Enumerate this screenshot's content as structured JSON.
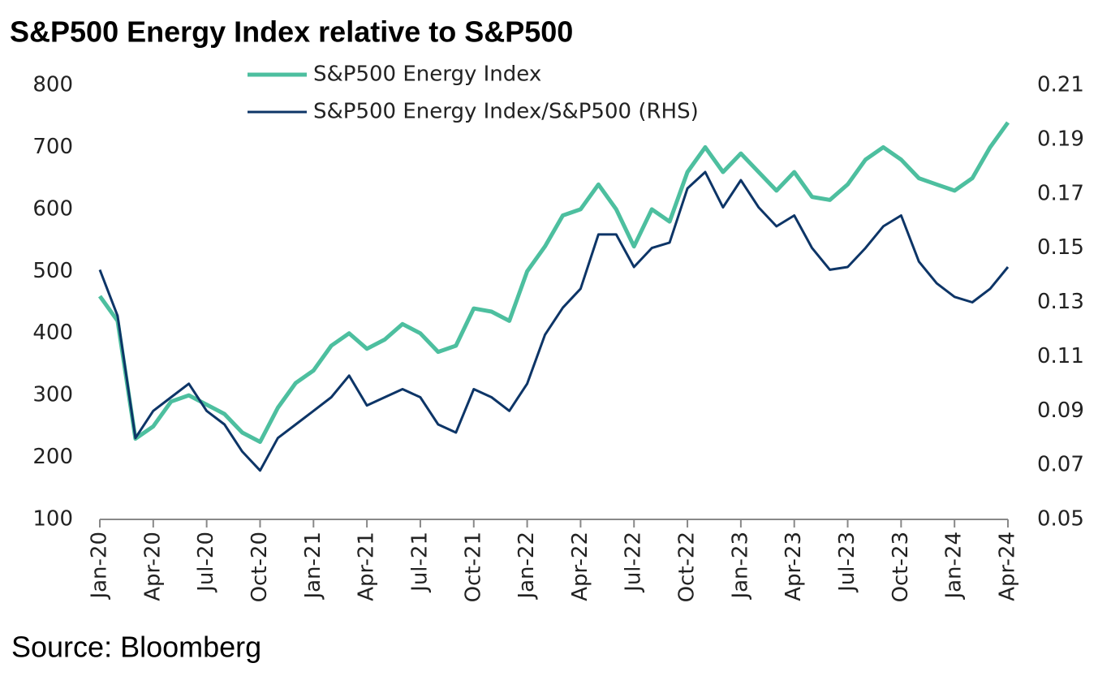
{
  "chart_data": {
    "type": "line",
    "title": "S&P500 Energy Index relative to S&P500",
    "source": "Source: Bloomberg",
    "categories": [
      "Jan-20",
      null,
      null,
      "Apr-20",
      null,
      null,
      "Jul-20",
      null,
      null,
      "Oct-20",
      null,
      null,
      "Jan-21",
      null,
      null,
      "Apr-21",
      null,
      null,
      "Jul-21",
      null,
      null,
      "Oct-21",
      null,
      null,
      "Jan-22",
      null,
      null,
      "Apr-22",
      null,
      null,
      "Jul-22",
      null,
      null,
      "Oct-22",
      null,
      null,
      "Jan-23",
      null,
      null,
      "Apr-23",
      null,
      null,
      "Jul-23",
      null,
      null,
      "Oct-23",
      null,
      null,
      "Jan-24",
      null,
      null,
      "Apr-24"
    ],
    "series": [
      {
        "name": "S&P500 Energy Index",
        "color": "#4dbf9f",
        "axis": "y",
        "values": [
          460,
          420,
          230,
          250,
          290,
          300,
          285,
          270,
          240,
          225,
          280,
          320,
          340,
          380,
          400,
          375,
          390,
          415,
          400,
          370,
          380,
          440,
          435,
          420,
          500,
          540,
          590,
          600,
          640,
          600,
          540,
          600,
          580,
          660,
          700,
          660,
          690,
          660,
          630,
          660,
          620,
          615,
          640,
          680,
          700,
          680,
          650,
          640,
          630,
          650,
          700,
          740
        ]
      },
      {
        "name": "S&P500 Energy Index/S&P500 (RHS)",
        "color": "#0d3567",
        "axis": "y2",
        "values": [
          0.142,
          0.125,
          0.08,
          0.09,
          0.095,
          0.1,
          0.09,
          0.085,
          0.075,
          0.068,
          0.08,
          0.085,
          0.09,
          0.095,
          0.103,
          0.092,
          0.095,
          0.098,
          0.095,
          0.085,
          0.082,
          0.098,
          0.095,
          0.09,
          0.1,
          0.118,
          0.128,
          0.135,
          0.155,
          0.155,
          0.143,
          0.15,
          0.152,
          0.172,
          0.178,
          0.165,
          0.175,
          0.165,
          0.158,
          0.162,
          0.15,
          0.142,
          0.143,
          0.15,
          0.158,
          0.162,
          0.145,
          0.137,
          0.132,
          0.13,
          0.135,
          0.143
        ]
      }
    ],
    "ylim": [
      100,
      800
    ],
    "yticks": [
      100,
      200,
      300,
      400,
      500,
      600,
      700,
      800
    ],
    "y2lim": [
      0.05,
      0.21
    ],
    "y2ticks": [
      0.05,
      0.07,
      0.09,
      0.11,
      0.13,
      0.15,
      0.17,
      0.19,
      0.21
    ],
    "grid": false
  }
}
